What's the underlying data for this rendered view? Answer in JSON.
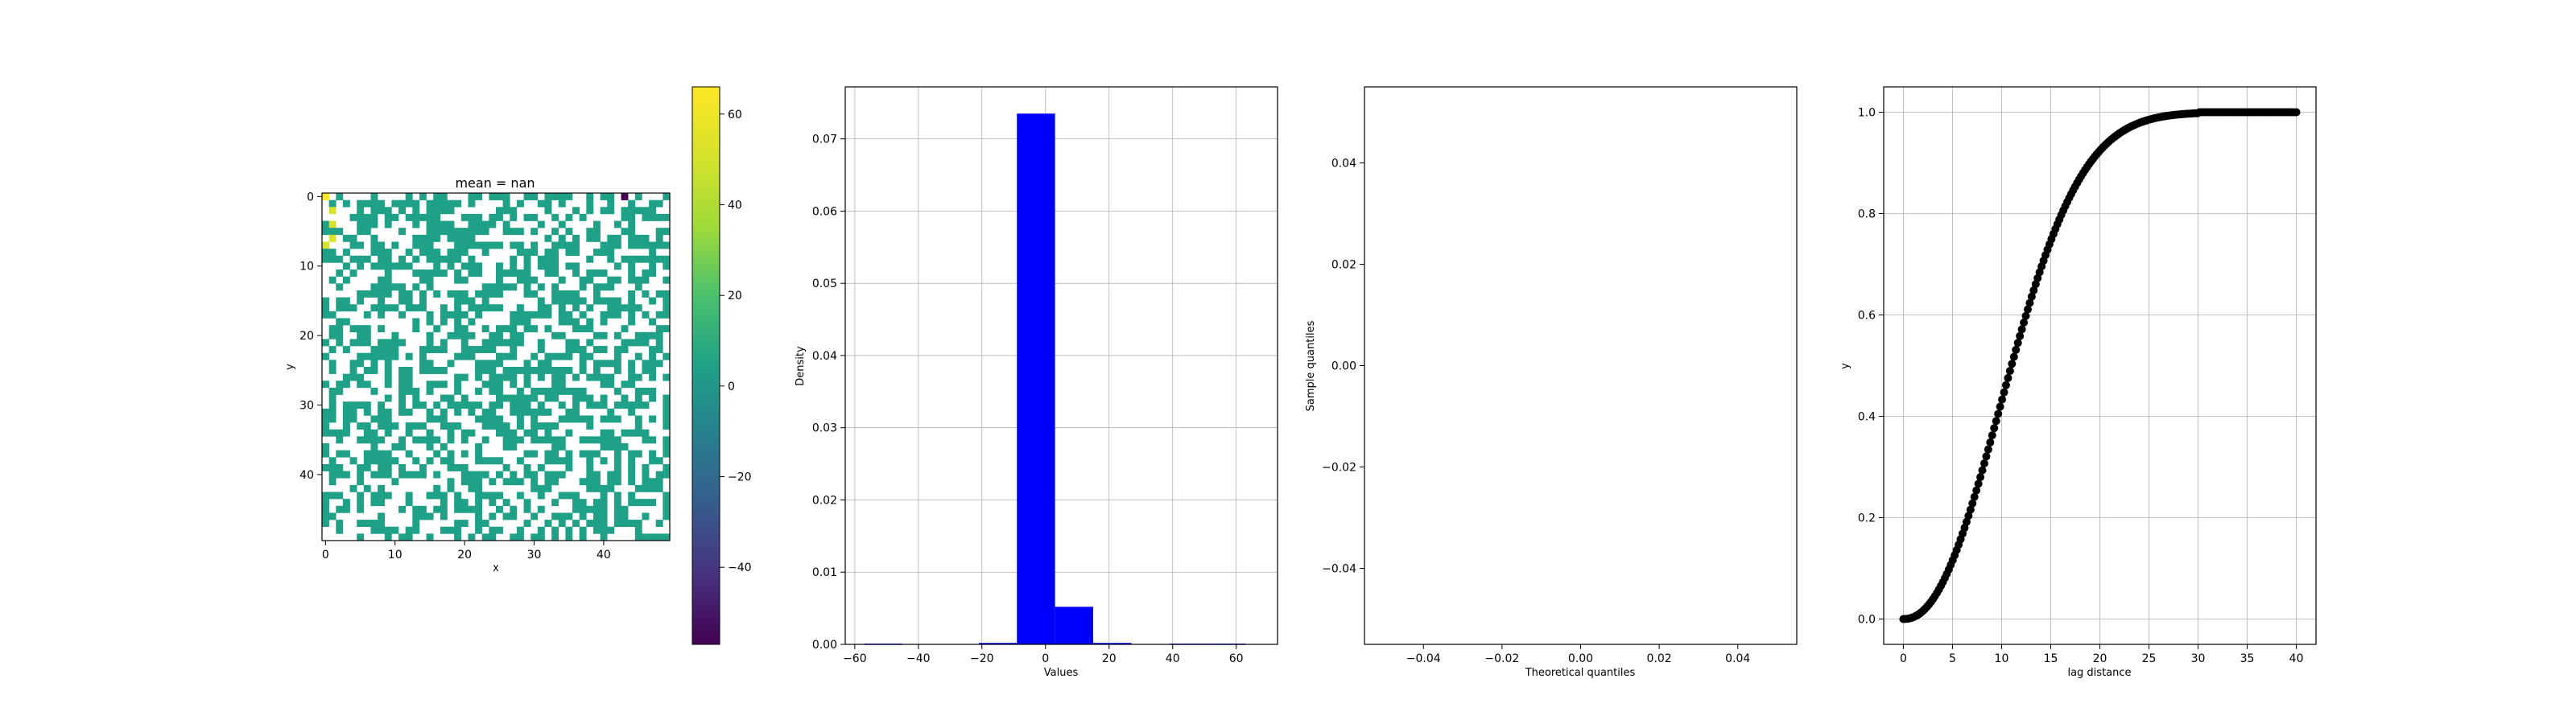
{
  "chart_data": [
    {
      "type": "heatmap",
      "title": "mean = nan",
      "xlabel": "x",
      "ylabel": "y",
      "grid_size": [
        50,
        50
      ],
      "x_ticks": [
        0,
        10,
        20,
        30,
        40
      ],
      "y_ticks": [
        0,
        10,
        20,
        30,
        40
      ],
      "fill_fraction": 0.5,
      "typical_value": 0,
      "outliers": [
        {
          "row": 0,
          "col": 0,
          "value": 60
        },
        {
          "row": 2,
          "col": 1,
          "value": 55
        },
        {
          "row": 4,
          "col": 1,
          "value": 50
        },
        {
          "row": 6,
          "col": 1,
          "value": 45
        },
        {
          "row": 7,
          "col": 0,
          "value": 58
        },
        {
          "row": 0,
          "col": 43,
          "value": -50
        }
      ],
      "colorbar": {
        "colormap": "viridis",
        "vmin": -57,
        "vmax": 66,
        "ticks": [
          -40,
          -20,
          0,
          20,
          40,
          60
        ],
        "tick_labels": [
          "−40",
          "−20",
          "0",
          "20",
          "40",
          "60"
        ]
      }
    },
    {
      "type": "bar",
      "subtype": "histogram",
      "xlabel": "Values",
      "ylabel": "Density",
      "bin_edges": [
        -57,
        -45,
        -33,
        -21,
        -9,
        3,
        15,
        27,
        39,
        51,
        63
      ],
      "values": [
        0.0001,
        0.0,
        0.0,
        0.0002,
        0.0735,
        0.0052,
        0.0002,
        0.0,
        0.0001,
        0.0001
      ],
      "xlim": [
        -63,
        73
      ],
      "ylim": [
        0,
        0.0772
      ],
      "x_ticks": [
        -60,
        -40,
        -20,
        0,
        20,
        40,
        60
      ],
      "x_tick_labels": [
        "−60",
        "−40",
        "−20",
        "0",
        "20",
        "40",
        "60"
      ],
      "y_ticks": [
        0.0,
        0.01,
        0.02,
        0.03,
        0.04,
        0.05,
        0.06,
        0.07
      ],
      "y_tick_labels": [
        "0.00",
        "0.01",
        "0.02",
        "0.03",
        "0.04",
        "0.05",
        "0.06",
        "0.07"
      ],
      "color": "#0000ff",
      "grid": true
    },
    {
      "type": "scatter",
      "xlabel": "Theoretical quantiles",
      "ylabel": "Sample quantiles",
      "x": [],
      "y": [],
      "xlim": [
        -0.055,
        0.055
      ],
      "ylim": [
        -0.055,
        0.055
      ],
      "x_ticks": [
        -0.04,
        -0.02,
        0.0,
        0.02,
        0.04
      ],
      "x_tick_labels": [
        "−0.04",
        "−0.02",
        "0.00",
        "0.02",
        "0.04"
      ],
      "y_ticks": [
        -0.04,
        -0.02,
        0.0,
        0.02,
        0.04
      ],
      "y_tick_labels": [
        "−0.04",
        "−0.02",
        "0.00",
        "0.02",
        "0.04"
      ],
      "grid": false
    },
    {
      "type": "scatter",
      "xlabel": "lag distance",
      "ylabel": "y",
      "function": "cubic-spline-like curve approx 1 - exp(-(h/13)^2) reaching 1.0 near 30",
      "x_range": [
        0,
        40
      ],
      "n_points": 200,
      "xlim": [
        -2,
        42
      ],
      "ylim": [
        -0.05,
        1.05
      ],
      "x_ticks": [
        0,
        5,
        10,
        15,
        20,
        25,
        30,
        35,
        40
      ],
      "y_ticks": [
        0.0,
        0.2,
        0.4,
        0.6,
        0.8,
        1.0
      ],
      "y_tick_labels": [
        "0.0",
        "0.2",
        "0.4",
        "0.6",
        "0.8",
        "1.0"
      ],
      "marker_color": "#000000",
      "grid": true
    }
  ]
}
